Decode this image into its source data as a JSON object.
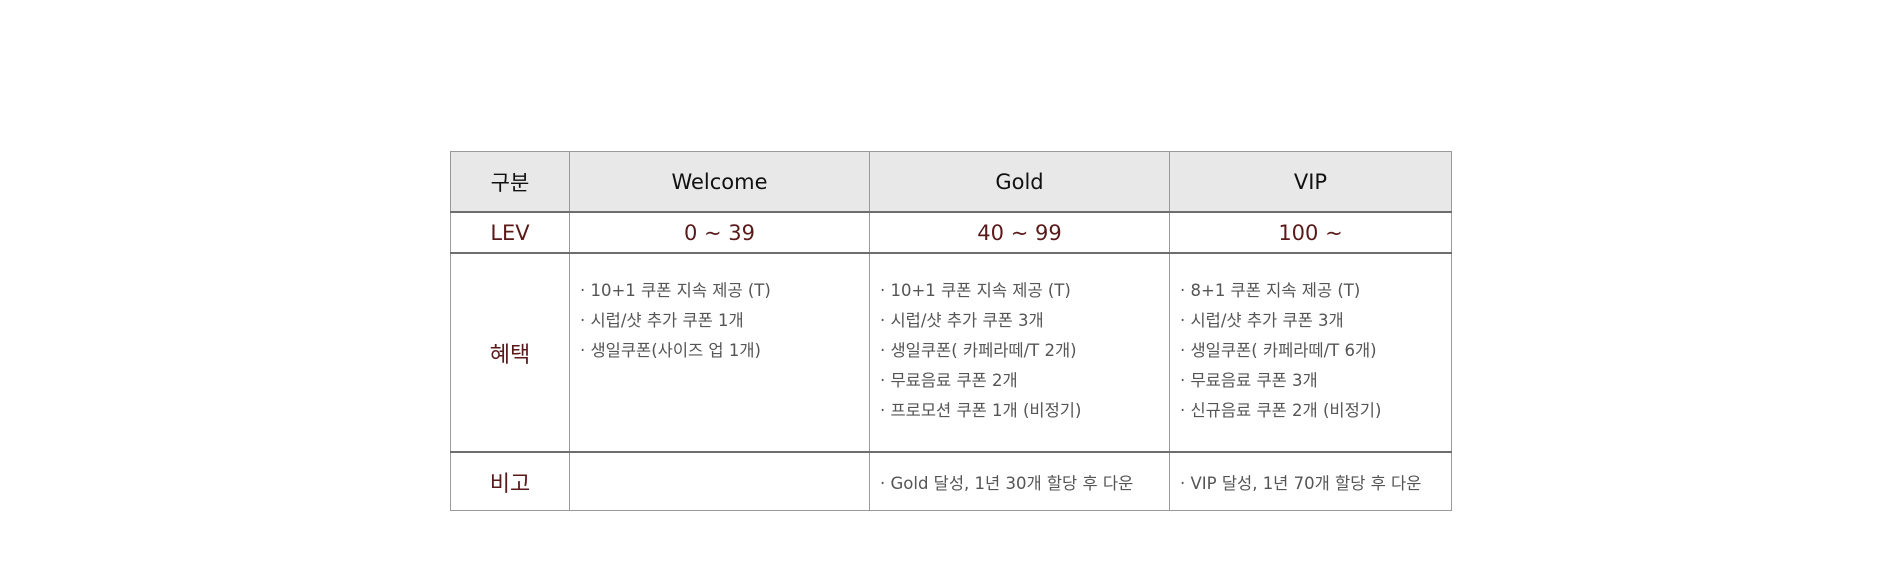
{
  "table": {
    "header": {
      "category": "구분",
      "welcome": "Welcome",
      "gold": "Gold",
      "vip": "VIP"
    },
    "level": {
      "label": "LEV",
      "welcome": "0 ~ 39",
      "gold": "40 ~ 99",
      "vip": "100 ~"
    },
    "benefits": {
      "label": "혜택",
      "welcome": [
        "· 10+1 쿠폰 지속 제공 (T)",
        "· 시럽/샷 추가 쿠폰 1개",
        "· 생일쿠폰(사이즈 업 1개)"
      ],
      "gold": [
        "· 10+1 쿠폰 지속 제공 (T)",
        "· 시럽/샷 추가 쿠폰 3개",
        "· 생일쿠폰( 카페라떼/T 2개)",
        "· 무료음료 쿠폰 2개",
        "· 프로모션 쿠폰 1개 (비정기)"
      ],
      "vip": [
        "· 8+1 쿠폰 지속 제공 (T)",
        "· 시럽/샷 추가 쿠폰 3개",
        "· 생일쿠폰( 카페라떼/T 6개)",
        "· 무료음료 쿠폰 3개",
        "· 신규음료 쿠폰 2개 (비정기)"
      ]
    },
    "note": {
      "label": "비고",
      "welcome": "",
      "gold": "· Gold 달성, 1년 30개 할당 후 다운",
      "vip": "· VIP 달성, 1년 70개 할당 후 다운"
    }
  }
}
